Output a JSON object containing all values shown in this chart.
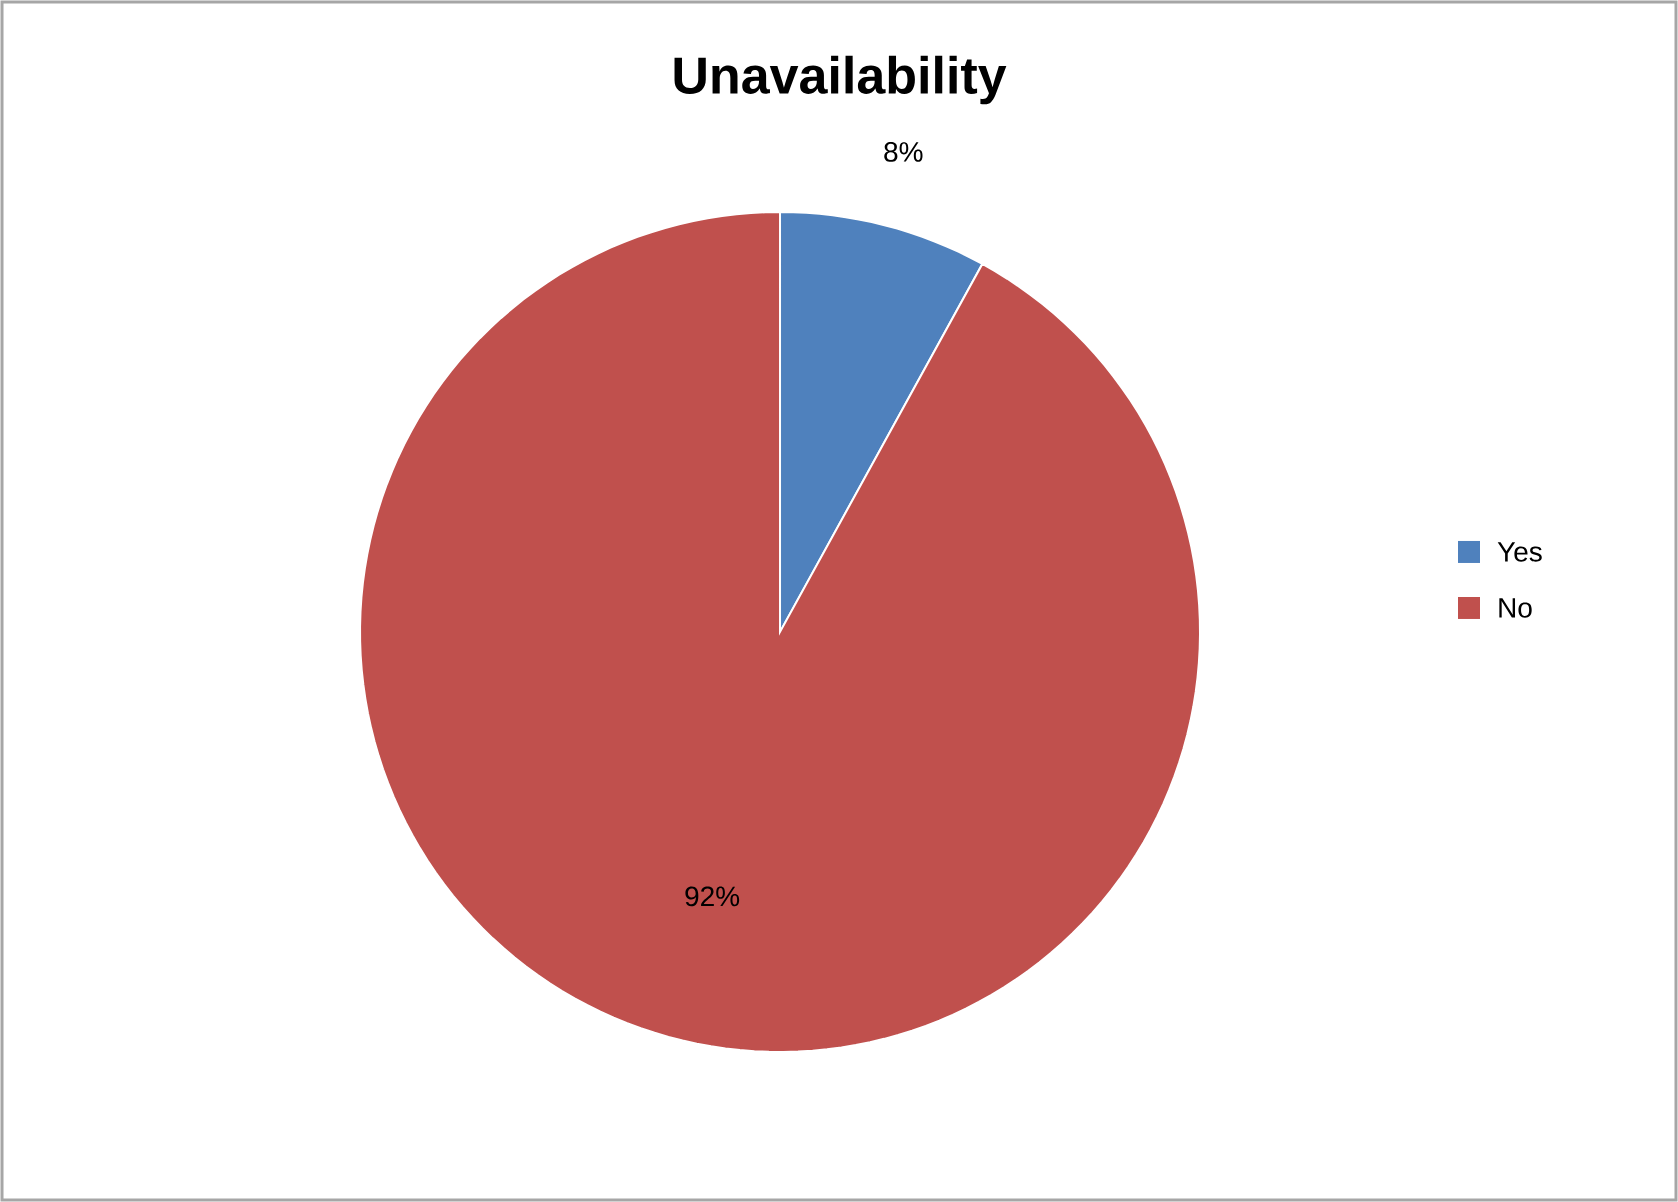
{
  "chart_data": {
    "type": "pie",
    "title": "Unavailability",
    "categories": [
      "Yes",
      "No"
    ],
    "values": [
      8,
      92
    ],
    "value_labels": [
      "8%",
      "92%"
    ],
    "colors": [
      "#4f81bd",
      "#c0504d"
    ],
    "legend": "right"
  }
}
